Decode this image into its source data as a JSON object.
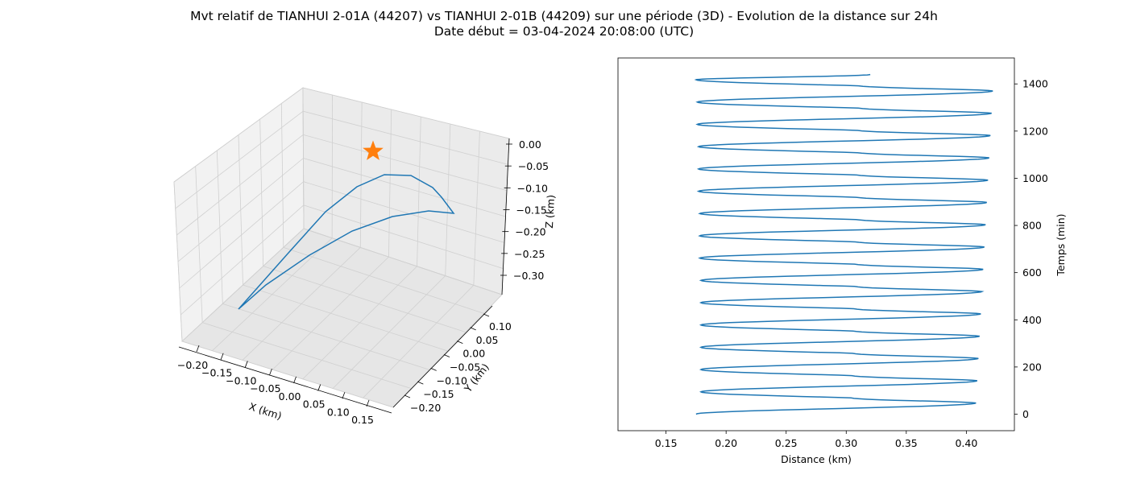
{
  "figure": {
    "title_line1": "Mvt relatif de TIANHUI 2-01A (44207) vs TIANHUI 2-01B (44209) sur une période (3D) - Evolution de la distance sur 24h",
    "title_line2": "Date début = 03-04-2024 20:08:00 (UTC)"
  },
  "colors": {
    "series": "#1f77b4",
    "star": "#ff7f0e",
    "pane": "#f2f2f2",
    "grid": "#cccccc"
  },
  "chart_data": [
    {
      "type": "line",
      "projection": "3d",
      "xlabel": "X (km)",
      "ylabel": "Y (km)",
      "zlabel": "Z (km)",
      "xticks": [
        "−0.20",
        "−0.15",
        "−0.10",
        "−0.05",
        "0.00",
        "0.05",
        "0.10",
        "0.15"
      ],
      "yticks": [
        "−0.20",
        "−0.15",
        "−0.10",
        "−0.05",
        "0.00",
        "0.05",
        "0.10"
      ],
      "zticks": [
        "0.00",
        "−0.05",
        "−0.10",
        "−0.15",
        "−0.20",
        "−0.25",
        "−0.30"
      ],
      "xlim": [
        -0.22,
        0.17
      ],
      "ylim": [
        -0.22,
        0.13
      ],
      "zlim": [
        -0.33,
        0.0
      ],
      "grid": true,
      "marker": {
        "type": "star",
        "x": 0.0,
        "y": 0.0,
        "z": 0.0
      }
    },
    {
      "type": "line",
      "xlabel": "Distance (km)",
      "ylabel": "Temps (min)",
      "ylabel_side": "right",
      "xlim": [
        0.11,
        0.44
      ],
      "ylim": [
        -70,
        1510
      ],
      "xticks": [
        "0.15",
        "0.20",
        "0.25",
        "0.30",
        "0.35",
        "0.40"
      ],
      "yticks": [
        "0",
        "200",
        "400",
        "600",
        "800",
        "1000",
        "1200",
        "1400"
      ],
      "orbit_period_min": 94.5,
      "series": [
        {
          "y": [
            0,
            47.25,
            94.5,
            141.75,
            189,
            236.25,
            283.5,
            330.75,
            378,
            425.25,
            472.5,
            519.75,
            567,
            614.25,
            661.5,
            708.75,
            756,
            803.25,
            850.5,
            897.75,
            945,
            992.25,
            1039.5,
            1086.75,
            1134,
            1181.25,
            1228.5,
            1275.75,
            1323,
            1370.25,
            1417.5,
            1440
          ],
          "x": [
            0.175,
            0.408,
            0.179,
            0.409,
            0.179,
            0.41,
            0.179,
            0.411,
            0.179,
            0.412,
            0.179,
            0.413,
            0.179,
            0.414,
            0.178,
            0.415,
            0.178,
            0.416,
            0.178,
            0.417,
            0.177,
            0.418,
            0.177,
            0.419,
            0.177,
            0.42,
            0.176,
            0.421,
            0.176,
            0.422,
            0.175,
            0.32
          ]
        }
      ]
    }
  ]
}
